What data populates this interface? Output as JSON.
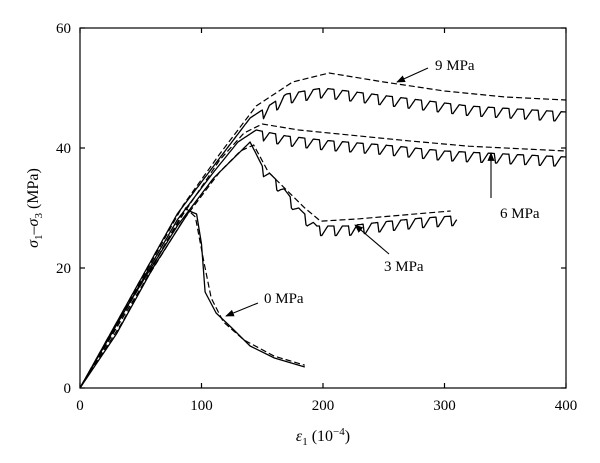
{
  "chart_data": {
    "type": "line",
    "xlabel_main": "ε",
    "xlabel_sub": "1",
    "xlabel_unit": " (10",
    "xlabel_exp": "−4",
    "xlabel_close": ")",
    "ylabel_main": "σ",
    "ylabel_sub1": "1",
    "ylabel_mid": "–σ",
    "ylabel_sub2": "3",
    "ylabel_unit": " (MPa)",
    "xlim": [
      0,
      400
    ],
    "ylim": [
      0,
      60
    ],
    "xticks": [
      "0",
      "100",
      "200",
      "300",
      "400"
    ],
    "yticks": [
      "0",
      "20",
      "40",
      "60"
    ],
    "grid": false,
    "series": [
      {
        "name": "0 MPa",
        "sawtooth": false,
        "solid": [
          [
            0,
            0
          ],
          [
            30,
            9
          ],
          [
            60,
            20
          ],
          [
            90,
            29.5
          ],
          [
            96,
            29
          ],
          [
            100,
            24
          ],
          [
            103,
            16
          ],
          [
            112,
            12.5
          ],
          [
            125,
            10
          ],
          [
            140,
            7
          ],
          [
            160,
            5
          ],
          [
            185,
            3.5
          ]
        ],
        "dashed": [
          [
            0,
            0
          ],
          [
            35,
            11
          ],
          [
            70,
            24
          ],
          [
            87,
            30
          ],
          [
            95,
            28.5
          ],
          [
            102,
            21
          ],
          [
            108,
            15
          ],
          [
            118,
            11
          ],
          [
            135,
            8
          ],
          [
            160,
            5.3
          ],
          [
            185,
            3.8
          ]
        ]
      },
      {
        "name": "3 MPa",
        "sawtooth": true,
        "solid": [
          [
            0,
            0
          ],
          [
            40,
            14
          ],
          [
            80,
            27
          ],
          [
            110,
            35
          ],
          [
            130,
            39
          ],
          [
            140,
            41
          ],
          [
            150,
            37
          ],
          [
            165,
            34
          ],
          [
            180,
            30
          ],
          [
            195,
            27
          ],
          [
            220,
            27
          ],
          [
            250,
            27.7
          ],
          [
            280,
            28.3
          ],
          [
            310,
            28.7
          ]
        ],
        "dashed": [
          [
            0,
            0
          ],
          [
            45,
            15
          ],
          [
            85,
            28
          ],
          [
            115,
            36
          ],
          [
            132,
            39.5
          ],
          [
            143,
            40.5
          ],
          [
            155,
            36
          ],
          [
            170,
            33
          ],
          [
            185,
            30
          ],
          [
            198,
            27.8
          ],
          [
            230,
            28.2
          ],
          [
            270,
            28.9
          ],
          [
            305,
            29.5
          ]
        ]
      },
      {
        "name": "6 MPa",
        "sawtooth": true,
        "solid": [
          [
            0,
            0
          ],
          [
            40,
            14
          ],
          [
            80,
            28
          ],
          [
            110,
            36
          ],
          [
            130,
            41
          ],
          [
            145,
            43
          ],
          [
            170,
            42
          ],
          [
            200,
            41.3
          ],
          [
            250,
            40.5
          ],
          [
            300,
            39.5
          ],
          [
            350,
            39
          ],
          [
            400,
            38.5
          ]
        ],
        "dashed": [
          [
            0,
            0
          ],
          [
            45,
            15.5
          ],
          [
            85,
            29
          ],
          [
            115,
            38
          ],
          [
            135,
            42.5
          ],
          [
            150,
            44
          ],
          [
            180,
            43
          ],
          [
            220,
            42.2
          ],
          [
            270,
            41.2
          ],
          [
            320,
            40.3
          ],
          [
            370,
            39.8
          ],
          [
            400,
            39.5
          ]
        ]
      },
      {
        "name": "9 MPa",
        "sawtooth": true,
        "solid": [
          [
            0,
            0
          ],
          [
            40,
            14.5
          ],
          [
            80,
            29
          ],
          [
            110,
            37
          ],
          [
            140,
            45
          ],
          [
            170,
            49
          ],
          [
            200,
            50
          ],
          [
            240,
            49
          ],
          [
            280,
            48
          ],
          [
            320,
            47
          ],
          [
            360,
            46.5
          ],
          [
            400,
            46
          ]
        ],
        "dashed": [
          [
            0,
            0
          ],
          [
            45,
            16
          ],
          [
            85,
            30.5
          ],
          [
            115,
            39
          ],
          [
            145,
            47
          ],
          [
            175,
            51
          ],
          [
            205,
            52.5
          ],
          [
            250,
            51
          ],
          [
            300,
            49.5
          ],
          [
            350,
            48.5
          ],
          [
            400,
            48
          ]
        ]
      }
    ],
    "annotations": [
      {
        "label": "9 MPa",
        "series": "9 MPa"
      },
      {
        "label": "6 MPa",
        "series": "6 MPa"
      },
      {
        "label": "3 MPa",
        "series": "3 MPa"
      },
      {
        "label": "0 MPa",
        "series": "0 MPa"
      }
    ]
  }
}
